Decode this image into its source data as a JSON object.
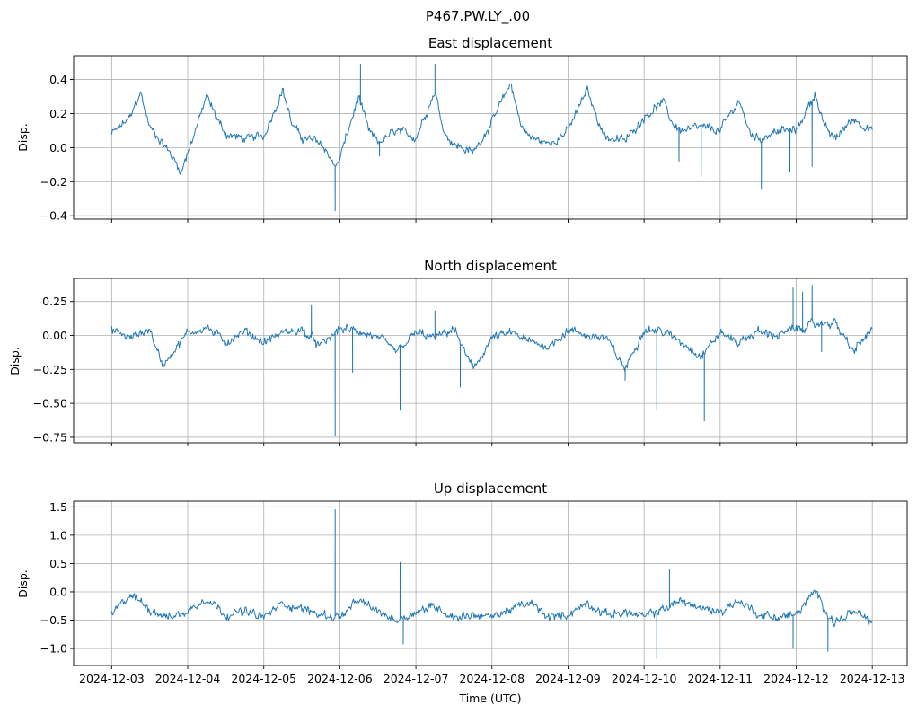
{
  "figure": {
    "title": "P467.PW.LY_.00",
    "xlabel": "Time (UTC)"
  },
  "colors": {
    "line": "#1f77b4",
    "grid": "#b0b0b0"
  },
  "chart_data": [
    {
      "type": "line",
      "title": "East displacement",
      "ylabel": "Disp.",
      "x_ticks": [
        "2024-12-03",
        "2024-12-04",
        "2024-12-05",
        "2024-12-06",
        "2024-12-07",
        "2024-12-08",
        "2024-12-09",
        "2024-12-10",
        "2024-12-11",
        "2024-12-12",
        "2024-12-13"
      ],
      "show_x_tick_labels": false,
      "xlim": [
        "2024-12-02T12:00",
        "2024-12-13T11:00"
      ],
      "ylim": [
        -0.42,
        0.54
      ],
      "y_ticks": [
        0.4,
        0.2,
        0.0,
        -0.2,
        -0.4
      ],
      "y_tick_labels": [
        "0.4",
        "0.2",
        "0.0",
        "−0.2",
        "−0.4"
      ],
      "grid": true,
      "series": [
        {
          "x": [
            "2024-12-03T00:00",
            "2024-12-03T06:00",
            "2024-12-03T09:00",
            "2024-12-03T12:00",
            "2024-12-03T18:00",
            "2024-12-03T22:00",
            "2024-12-04T06:00",
            "2024-12-04T09:00",
            "2024-12-04T12:00",
            "2024-12-04T18:00",
            "2024-12-05T00:00",
            "2024-12-05T06:00",
            "2024-12-05T09:00",
            "2024-12-05T12:00",
            "2024-12-05T18:00",
            "2024-12-05T23:00",
            "2024-12-06T06:00",
            "2024-12-06T09:00",
            "2024-12-06T12:00",
            "2024-12-06T18:00",
            "2024-12-07T00:00",
            "2024-12-07T06:00",
            "2024-12-07T09:00",
            "2024-12-07T12:00",
            "2024-12-07T18:00",
            "2024-12-08T00:00",
            "2024-12-08T06:00",
            "2024-12-08T09:00",
            "2024-12-08T12:00",
            "2024-12-08T18:00",
            "2024-12-09T00:00",
            "2024-12-09T06:00",
            "2024-12-09T09:00",
            "2024-12-09T12:00",
            "2024-12-09T18:00",
            "2024-12-10T00:00",
            "2024-12-10T06:00",
            "2024-12-10T09:00",
            "2024-12-10T12:00",
            "2024-12-10T18:00",
            "2024-12-11T00:00",
            "2024-12-11T06:00",
            "2024-12-11T09:00",
            "2024-12-11T12:00",
            "2024-12-11T18:00",
            "2024-12-12T00:00",
            "2024-12-12T06:00",
            "2024-12-12T09:00",
            "2024-12-12T12:00",
            "2024-12-12T18:00",
            "2024-12-13T00:00"
          ],
          "y": [
            0.08,
            0.18,
            0.33,
            0.12,
            -0.02,
            -0.14,
            0.3,
            0.18,
            0.08,
            0.05,
            0.07,
            0.34,
            0.13,
            0.06,
            0.03,
            -0.12,
            0.3,
            0.1,
            0.03,
            0.1,
            0.06,
            0.33,
            0.09,
            0.02,
            -0.03,
            0.15,
            0.38,
            0.14,
            0.06,
            0.02,
            0.1,
            0.34,
            0.18,
            0.06,
            0.04,
            0.18,
            0.27,
            0.14,
            0.1,
            0.12,
            0.1,
            0.28,
            0.1,
            0.05,
            0.1,
            0.1,
            0.32,
            0.12,
            0.05,
            0.17,
            0.1
          ],
          "spikes": [
            {
              "x": "2024-12-05T22:30",
              "y": -0.37
            },
            {
              "x": "2024-12-06T06:30",
              "y": 0.49
            },
            {
              "x": "2024-12-06T12:30",
              "y": -0.05
            },
            {
              "x": "2024-12-07T06:00",
              "y": 0.49
            },
            {
              "x": "2024-12-10T11:00",
              "y": -0.08
            },
            {
              "x": "2024-12-10T18:00",
              "y": -0.17
            },
            {
              "x": "2024-12-11T13:00",
              "y": -0.24
            },
            {
              "x": "2024-12-11T22:00",
              "y": -0.14
            },
            {
              "x": "2024-12-12T05:00",
              "y": -0.11
            }
          ]
        }
      ]
    },
    {
      "type": "line",
      "title": "North displacement",
      "ylabel": "Disp.",
      "x_ticks": [
        "2024-12-03",
        "2024-12-04",
        "2024-12-05",
        "2024-12-06",
        "2024-12-07",
        "2024-12-08",
        "2024-12-09",
        "2024-12-10",
        "2024-12-11",
        "2024-12-12",
        "2024-12-13"
      ],
      "show_x_tick_labels": false,
      "xlim": [
        "2024-12-02T12:00",
        "2024-12-13T11:00"
      ],
      "ylim": [
        -0.79,
        0.42
      ],
      "y_ticks": [
        0.25,
        0.0,
        -0.25,
        -0.5,
        -0.75
      ],
      "y_tick_labels": [
        "0.25",
        "0.00",
        "−0.25",
        "−0.50",
        "−0.75"
      ],
      "grid": true,
      "series": [
        {
          "x": [
            "2024-12-03T00:00",
            "2024-12-03T06:00",
            "2024-12-03T12:00",
            "2024-12-03T16:00",
            "2024-12-04T00:00",
            "2024-12-04T06:00",
            "2024-12-04T12:00",
            "2024-12-04T18:00",
            "2024-12-05T00:00",
            "2024-12-05T06:00",
            "2024-12-05T12:00",
            "2024-12-05T18:00",
            "2024-12-06T00:00",
            "2024-12-06T06:00",
            "2024-12-06T12:00",
            "2024-12-06T18:00",
            "2024-12-07T00:00",
            "2024-12-07T06:00",
            "2024-12-07T12:00",
            "2024-12-07T18:00",
            "2024-12-08T00:00",
            "2024-12-08T06:00",
            "2024-12-08T12:00",
            "2024-12-08T18:00",
            "2024-12-09T00:00",
            "2024-12-09T06:00",
            "2024-12-09T12:00",
            "2024-12-09T18:00",
            "2024-12-10T00:00",
            "2024-12-10T06:00",
            "2024-12-10T12:00",
            "2024-12-10T18:00",
            "2024-12-11T00:00",
            "2024-12-11T06:00",
            "2024-12-11T12:00",
            "2024-12-11T18:00",
            "2024-12-12T00:00",
            "2024-12-12T06:00",
            "2024-12-12T12:00",
            "2024-12-12T18:00",
            "2024-12-13T00:00"
          ],
          "y": [
            0.04,
            -0.02,
            0.05,
            -0.22,
            0.02,
            0.06,
            -0.05,
            0.03,
            -0.05,
            0.02,
            0.04,
            -0.08,
            0.05,
            0.03,
            -0.02,
            -0.12,
            0.02,
            -0.02,
            0.05,
            -0.25,
            -0.02,
            0.02,
            -0.05,
            -0.08,
            0.04,
            0.0,
            -0.02,
            -0.25,
            0.05,
            0.03,
            -0.05,
            -0.15,
            0.02,
            -0.05,
            0.03,
            0.0,
            0.05,
            0.08,
            0.1,
            -0.12,
            0.05
          ],
          "spikes": [
            {
              "x": "2024-12-05T15:00",
              "y": 0.22
            },
            {
              "x": "2024-12-05T22:30",
              "y": -0.74
            },
            {
              "x": "2024-12-06T04:00",
              "y": -0.27
            },
            {
              "x": "2024-12-06T19:00",
              "y": -0.55
            },
            {
              "x": "2024-12-07T06:00",
              "y": 0.18
            },
            {
              "x": "2024-12-07T14:00",
              "y": -0.38
            },
            {
              "x": "2024-12-09T18:00",
              "y": -0.33
            },
            {
              "x": "2024-12-10T04:00",
              "y": -0.55
            },
            {
              "x": "2024-12-10T19:00",
              "y": -0.63
            },
            {
              "x": "2024-12-11T23:00",
              "y": 0.35
            },
            {
              "x": "2024-12-12T02:00",
              "y": 0.32
            },
            {
              "x": "2024-12-12T05:00",
              "y": 0.37
            },
            {
              "x": "2024-12-12T08:00",
              "y": -0.12
            }
          ]
        }
      ]
    },
    {
      "type": "line",
      "title": "Up displacement",
      "ylabel": "Disp.",
      "x_ticks": [
        "2024-12-03",
        "2024-12-04",
        "2024-12-05",
        "2024-12-06",
        "2024-12-07",
        "2024-12-08",
        "2024-12-09",
        "2024-12-10",
        "2024-12-11",
        "2024-12-12",
        "2024-12-13"
      ],
      "show_x_tick_labels": true,
      "xlim": [
        "2024-12-02T12:00",
        "2024-12-13T11:00"
      ],
      "ylim": [
        -1.3,
        1.6
      ],
      "y_ticks": [
        1.5,
        1.0,
        0.5,
        0.0,
        -0.5,
        -1.0
      ],
      "y_tick_labels": [
        "1.5",
        "1.0",
        "0.5",
        "0.0",
        "−0.5",
        "−1.0"
      ],
      "grid": true,
      "series": [
        {
          "x": [
            "2024-12-03T00:00",
            "2024-12-03T06:00",
            "2024-12-03T12:00",
            "2024-12-03T18:00",
            "2024-12-04T00:00",
            "2024-12-04T06:00",
            "2024-12-04T12:00",
            "2024-12-04T18:00",
            "2024-12-05T00:00",
            "2024-12-05T06:00",
            "2024-12-05T12:00",
            "2024-12-05T18:00",
            "2024-12-06T00:00",
            "2024-12-06T06:00",
            "2024-12-06T12:00",
            "2024-12-06T18:00",
            "2024-12-07T00:00",
            "2024-12-07T06:00",
            "2024-12-07T12:00",
            "2024-12-07T18:00",
            "2024-12-08T00:00",
            "2024-12-08T06:00",
            "2024-12-08T12:00",
            "2024-12-08T18:00",
            "2024-12-09T00:00",
            "2024-12-09T06:00",
            "2024-12-09T12:00",
            "2024-12-09T18:00",
            "2024-12-10T00:00",
            "2024-12-10T06:00",
            "2024-12-10T12:00",
            "2024-12-10T18:00",
            "2024-12-11T00:00",
            "2024-12-11T06:00",
            "2024-12-11T12:00",
            "2024-12-11T18:00",
            "2024-12-12T00:00",
            "2024-12-12T06:00",
            "2024-12-12T12:00",
            "2024-12-12T18:00",
            "2024-12-13T00:00"
          ],
          "y": [
            -0.4,
            -0.05,
            -0.3,
            -0.45,
            -0.35,
            -0.1,
            -0.4,
            -0.35,
            -0.45,
            -0.2,
            -0.3,
            -0.4,
            -0.45,
            -0.15,
            -0.35,
            -0.5,
            -0.35,
            -0.25,
            -0.45,
            -0.4,
            -0.45,
            -0.3,
            -0.2,
            -0.45,
            -0.4,
            -0.2,
            -0.4,
            -0.35,
            -0.45,
            -0.3,
            -0.15,
            -0.3,
            -0.35,
            -0.15,
            -0.4,
            -0.45,
            -0.4,
            0.0,
            -0.55,
            -0.35,
            -0.55
          ],
          "spikes": [
            {
              "x": "2024-12-05T22:30",
              "y": 1.45
            },
            {
              "x": "2024-12-06T19:00",
              "y": 0.52
            },
            {
              "x": "2024-12-06T20:00",
              "y": -0.92
            },
            {
              "x": "2024-12-10T04:00",
              "y": -1.18
            },
            {
              "x": "2024-12-10T08:00",
              "y": 0.4
            },
            {
              "x": "2024-12-11T23:00",
              "y": -1.0
            },
            {
              "x": "2024-12-12T10:00",
              "y": -1.05
            }
          ]
        }
      ]
    }
  ]
}
